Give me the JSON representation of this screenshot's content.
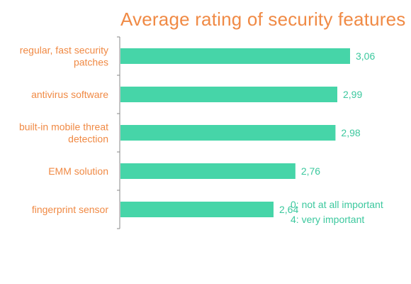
{
  "colors": {
    "title": "#f08a45",
    "category_label": "#f08a45",
    "bar": "#46d5a8",
    "value_label": "#3cc89e",
    "axis": "#8a8a8a"
  },
  "chart_data": {
    "type": "bar",
    "orientation": "horizontal",
    "title": "Average rating of security features",
    "categories": [
      "regular, fast security patches",
      "antivirus software",
      "built-in mobile threat detection",
      "EMM solution",
      "fingerprint sensor"
    ],
    "values": [
      3.06,
      2.99,
      2.98,
      2.76,
      2.64
    ],
    "value_labels": [
      "3,06",
      "2,99",
      "2,98",
      "2,76",
      "2,64"
    ],
    "xlim": [
      1.8,
      3.15
    ],
    "grid": false,
    "notes": [
      "0: not at all important",
      "4: very important"
    ]
  }
}
